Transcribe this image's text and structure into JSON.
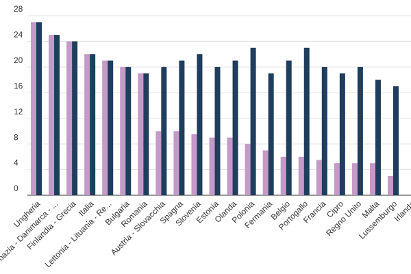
{
  "chart_data": {
    "type": "bar",
    "categories": [
      "Ungheria",
      "Croazia - Danimarca - ...",
      "Finlandia - Grecia",
      "Italia",
      "Lettonia - Lituania - Re...",
      "Bulgaria",
      "Romania",
      "Austria - Slovacchia",
      "Spagna",
      "Slovenia",
      "Estonia",
      "Olanda",
      "Polonia",
      "Fermania",
      "Belgio",
      "Portogallo",
      "Francia",
      "Cipro",
      "Regno Unito",
      "Malta",
      "Lussemburgo",
      "Irlanda"
    ],
    "series": [
      {
        "color": "#c49ac8",
        "values": [
          27,
          25,
          24,
          22,
          21,
          20,
          19,
          10,
          10,
          9.5,
          9,
          9,
          8,
          7,
          6,
          6,
          5.5,
          5,
          5,
          5,
          3,
          null
        ]
      },
      {
        "color": "#1f3d5c",
        "values": [
          27,
          25,
          24,
          22,
          21,
          20,
          19,
          20,
          21,
          22,
          20,
          21,
          23,
          19,
          21,
          23,
          20,
          19,
          20,
          18,
          17,
          null
        ]
      }
    ],
    "ylim": [
      0,
      28
    ],
    "yticks": [
      0,
      4,
      8,
      12,
      16,
      20,
      24,
      28
    ],
    "grid": true
  }
}
